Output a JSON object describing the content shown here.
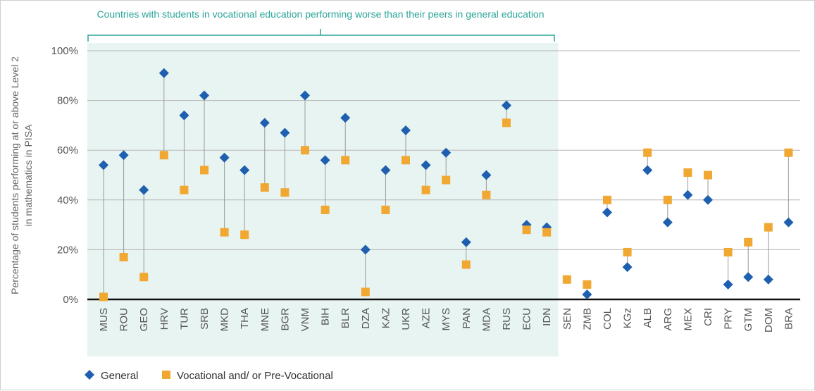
{
  "chart_data": {
    "type": "scatter",
    "categories": [
      "MUS",
      "ROU",
      "GEO",
      "HRV",
      "TUR",
      "SRB",
      "MKD",
      "THA",
      "MNE",
      "BGR",
      "VNM",
      "BIH",
      "BLR",
      "DZA",
      "KAZ",
      "UKR",
      "AZE",
      "MYS",
      "PAN",
      "MDA",
      "RUS",
      "ECU",
      "IDN",
      "SEN",
      "ZMB",
      "COL",
      "KGz",
      "ALB",
      "ARG",
      "MEX",
      "CRI",
      "PRY",
      "GTM",
      "DOM",
      "BRA"
    ],
    "series": [
      {
        "name": "General",
        "color": "#1f5fb0",
        "marker": "diamond",
        "values": [
          54,
          58,
          44,
          91,
          74,
          82,
          57,
          52,
          71,
          67,
          82,
          56,
          73,
          20,
          52,
          68,
          54,
          59,
          23,
          50,
          78,
          30,
          29,
          null,
          2,
          35,
          13,
          52,
          31,
          42,
          40,
          6,
          9,
          8,
          31
        ]
      },
      {
        "name": "Vocational and/ or Pre-Vocational",
        "color": "#f0a832",
        "marker": "square",
        "values": [
          1,
          17,
          9,
          58,
          44,
          52,
          27,
          26,
          45,
          43,
          60,
          36,
          56,
          3,
          36,
          56,
          44,
          48,
          14,
          42,
          71,
          28,
          27,
          8,
          6,
          40,
          19,
          59,
          40,
          51,
          50,
          19,
          23,
          29,
          59
        ]
      }
    ],
    "title": "",
    "xlabel": "",
    "ylabel": "Percentage of students performing at or above Level 2 in mathematics in PISA",
    "ylabel_lines": [
      "Percentage of students performing at or above Level 2",
      "in mathematics in PISA"
    ],
    "ylim": [
      0,
      100
    ],
    "yticks": [
      0,
      20,
      40,
      60,
      80,
      100
    ],
    "ytick_labels": [
      "0%",
      "20%",
      "40%",
      "60%",
      "80%",
      "100%"
    ],
    "grid": true,
    "legend_position": "bottom-left",
    "highlight": {
      "from_category": "MUS",
      "to_category": "IDN",
      "label": "Countries with students in vocational education performing worse than their peers in general education",
      "color": "#2aa59a",
      "fill": "#e8f4f1"
    }
  }
}
